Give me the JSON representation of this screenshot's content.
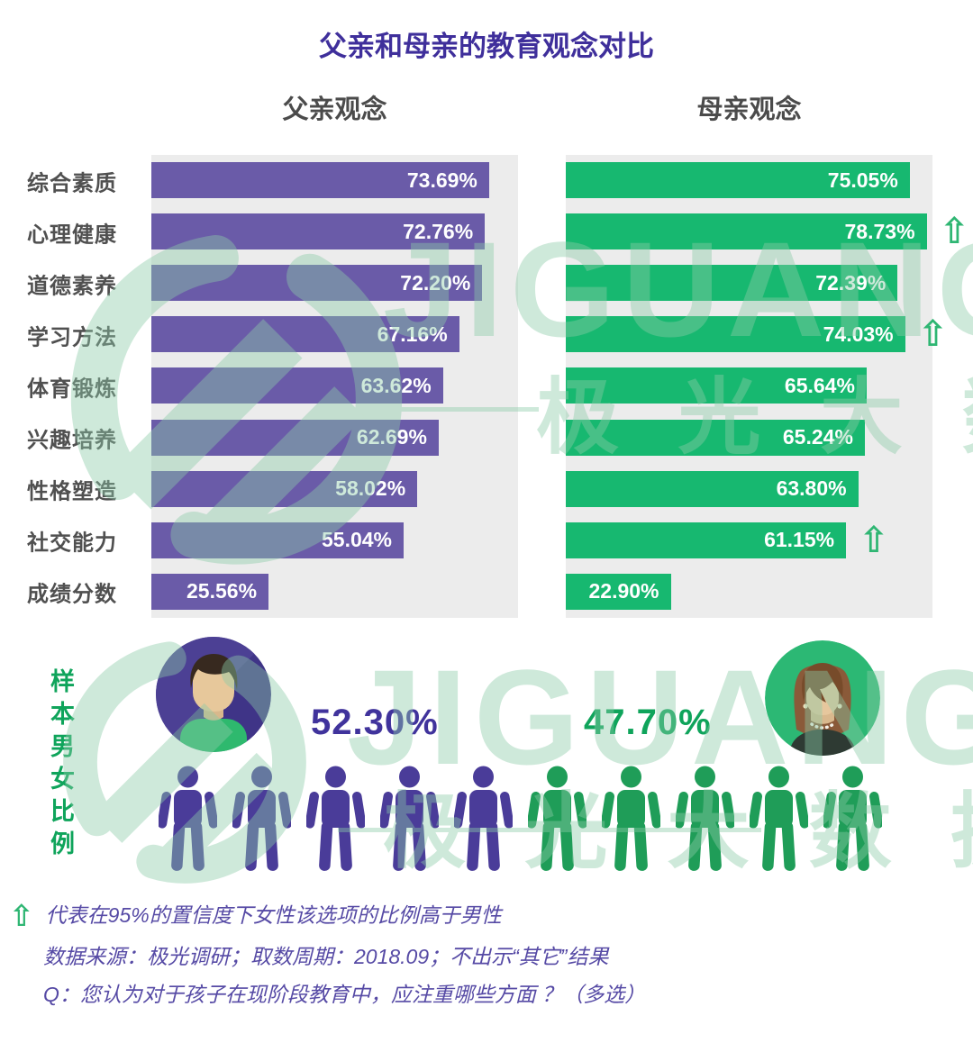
{
  "title": "父亲和母亲的教育观念对比",
  "columns": {
    "father": "父亲观念",
    "mother": "母亲观念"
  },
  "chart_data": {
    "type": "bar",
    "orientation": "horizontal",
    "categories": [
      "综合素质",
      "心理健康",
      "道德素养",
      "学习方法",
      "体育锻炼",
      "兴趣培养",
      "性格塑造",
      "社交能力",
      "成绩分数"
    ],
    "series": [
      {
        "name": "父亲观念",
        "color": "#6A5BA8",
        "values": [
          73.69,
          72.76,
          72.2,
          67.16,
          63.62,
          62.69,
          58.02,
          55.04,
          25.56
        ]
      },
      {
        "name": "母亲观念",
        "color": "#17B870",
        "values": [
          75.05,
          78.73,
          72.39,
          74.03,
          65.64,
          65.24,
          63.8,
          61.15,
          22.9
        ],
        "significantly_higher": [
          false,
          true,
          false,
          true,
          false,
          false,
          false,
          true,
          false
        ]
      }
    ],
    "value_suffix": "%",
    "xlim": [
      0,
      80
    ],
    "grid": false,
    "legend_position": "top"
  },
  "sample": {
    "label": "样本男女比例",
    "male_pct": "52.30%",
    "female_pct": "47.70%",
    "male_icon_count": 5,
    "female_icon_count": 5
  },
  "footnotes": {
    "arrow_note": "代表在95%的置信度下女性该选项的比例高于男性",
    "source": "数据来源：极光调研；取数周期：2018.09；不出示“其它”结果",
    "question": "Q：您认为对于孩子在现阶段教育中，应注重哪些方面 ？（多选）"
  },
  "watermark": {
    "brand": "JIGUANG",
    "brand_cn": "极 光 大 数 据"
  },
  "icons": {
    "up_arrow": "⇧"
  },
  "colors": {
    "father_bar": "#6A5BA8",
    "mother_bar": "#17B870",
    "title": "#3F2F9B",
    "header": "#4B4B4B",
    "category_label": "#505050",
    "male_accent": "#40339C",
    "female_accent": "#0FA45B",
    "person_male": "#4A3C99",
    "person_female": "#1F9D58",
    "arrow_green": "#2FB673",
    "footnote": "#564AA5",
    "panel_bg": "#ECECEC",
    "watermark_green": "#8CCBA8"
  }
}
